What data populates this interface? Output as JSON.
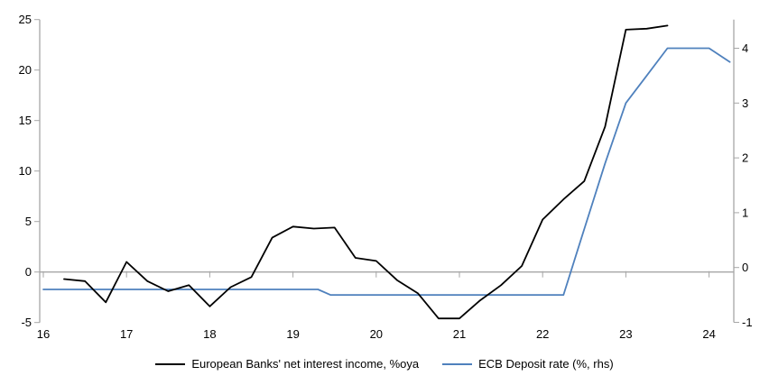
{
  "chart_data": {
    "type": "line",
    "title": "",
    "x_axis": {
      "tick_labels": [
        "16",
        "17",
        "18",
        "19",
        "20",
        "21",
        "22",
        "23",
        "24"
      ],
      "tick_values": [
        16,
        17,
        18,
        19,
        20,
        21,
        22,
        23,
        24
      ],
      "range": [
        16,
        24.3
      ]
    },
    "left_axis": {
      "tick_values": [
        25,
        20,
        15,
        10,
        5,
        0,
        -5
      ],
      "range": [
        -5,
        25
      ]
    },
    "right_axis": {
      "tick_values": [
        4,
        3,
        2,
        1,
        0,
        -1
      ],
      "range": [
        -1,
        4.5
      ]
    },
    "grid": "zero-line-only",
    "legend_position": "bottom",
    "series": [
      {
        "name": "European Banks' net interest income, %oya",
        "color": "#000000",
        "axis": "left",
        "points": [
          [
            16.25,
            -0.7
          ],
          [
            16.5,
            -0.9
          ],
          [
            16.75,
            -3.0
          ],
          [
            17.0,
            1.0
          ],
          [
            17.25,
            -0.9
          ],
          [
            17.5,
            -1.9
          ],
          [
            17.75,
            -1.3
          ],
          [
            18.0,
            -3.4
          ],
          [
            18.25,
            -1.5
          ],
          [
            18.5,
            -0.5
          ],
          [
            18.75,
            3.4
          ],
          [
            19.0,
            4.5
          ],
          [
            19.25,
            4.3
          ],
          [
            19.5,
            4.4
          ],
          [
            19.75,
            1.4
          ],
          [
            20.0,
            1.1
          ],
          [
            20.25,
            -0.8
          ],
          [
            20.5,
            -2.1
          ],
          [
            20.75,
            -4.6
          ],
          [
            21.0,
            -4.6
          ],
          [
            21.25,
            -2.8
          ],
          [
            21.5,
            -1.3
          ],
          [
            21.75,
            0.6
          ],
          [
            22.0,
            5.2
          ],
          [
            22.25,
            7.2
          ],
          [
            22.5,
            9.0
          ],
          [
            22.75,
            14.4
          ],
          [
            23.0,
            24.0
          ],
          [
            23.25,
            24.1
          ],
          [
            23.5,
            24.4
          ]
        ]
      },
      {
        "name": "ECB Deposit rate (%, rhs)",
        "color": "#4F81BD",
        "axis": "right",
        "points": [
          [
            16.0,
            -0.4
          ],
          [
            19.3,
            -0.4
          ],
          [
            19.45,
            -0.5
          ],
          [
            22.25,
            -0.5
          ],
          [
            22.5,
            0.7
          ],
          [
            22.75,
            1.9
          ],
          [
            23.0,
            3.0
          ],
          [
            23.25,
            3.5
          ],
          [
            23.5,
            4.0
          ],
          [
            24.0,
            4.0
          ],
          [
            24.25,
            3.75
          ]
        ]
      }
    ]
  },
  "colors": {
    "axis_line": "#A6A6A6",
    "zero_line": "#A6A6A6",
    "text": "#000000",
    "background": "#FFFFFF"
  }
}
